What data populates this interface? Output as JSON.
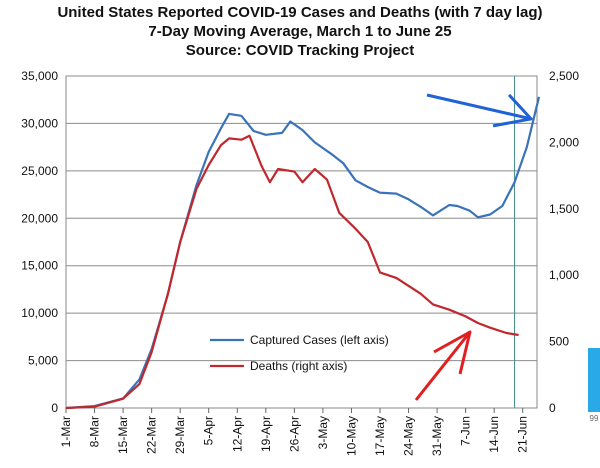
{
  "chart_data": {
    "type": "line",
    "title": "United States Reported COVID-19 Cases and Deaths (with 7 day lag)",
    "subtitle": "7-Day Moving Average, March 1 to June 25",
    "source": "Source: COVID Tracking Project",
    "x_ticks": [
      "1-Mar",
      "8-Mar",
      "15-Mar",
      "22-Mar",
      "29-Mar",
      "5-Apr",
      "12-Apr",
      "19-Apr",
      "26-Apr",
      "3-May",
      "10-May",
      "17-May",
      "24-May",
      "31-May",
      "7-Jun",
      "14-Jun",
      "21-Jun"
    ],
    "y_left": {
      "ylim": [
        0,
        35000
      ],
      "ticks": [
        "0",
        "5,000",
        "10,000",
        "15,000",
        "20,000",
        "25,000",
        "30,000",
        "35,000"
      ]
    },
    "y_right": {
      "ylim": [
        0,
        2500
      ],
      "ticks": [
        "0",
        "500",
        "1,000",
        "1,500",
        "2,000",
        "2,500"
      ]
    },
    "grid": true,
    "legend_position": "bottom-center",
    "series": [
      {
        "name": "Captured Cases (left axis)",
        "axis": "left",
        "color": "#3a73b8",
        "points": [
          [
            "2020-03-01",
            0
          ],
          [
            "2020-03-08",
            200
          ],
          [
            "2020-03-15",
            1000
          ],
          [
            "2020-03-19",
            3000
          ],
          [
            "2020-03-22",
            6200
          ],
          [
            "2020-03-26",
            12000
          ],
          [
            "2020-03-29",
            17500
          ],
          [
            "2020-04-02",
            23500
          ],
          [
            "2020-04-05",
            27000
          ],
          [
            "2020-04-08",
            29500
          ],
          [
            "2020-04-10",
            31000
          ],
          [
            "2020-04-13",
            30800
          ],
          [
            "2020-04-16",
            29200
          ],
          [
            "2020-04-19",
            28800
          ],
          [
            "2020-04-23",
            29000
          ],
          [
            "2020-04-25",
            30200
          ],
          [
            "2020-04-28",
            29300
          ],
          [
            "2020-05-01",
            28000
          ],
          [
            "2020-05-05",
            26800
          ],
          [
            "2020-05-08",
            25800
          ],
          [
            "2020-05-11",
            24000
          ],
          [
            "2020-05-14",
            23300
          ],
          [
            "2020-05-17",
            22700
          ],
          [
            "2020-05-21",
            22600
          ],
          [
            "2020-05-24",
            22000
          ],
          [
            "2020-05-27",
            21200
          ],
          [
            "2020-05-30",
            20300
          ],
          [
            "2020-06-03",
            21400
          ],
          [
            "2020-06-05",
            21300
          ],
          [
            "2020-06-08",
            20800
          ],
          [
            "2020-06-10",
            20100
          ],
          [
            "2020-06-13",
            20400
          ],
          [
            "2020-06-16",
            21300
          ],
          [
            "2020-06-19",
            23800
          ],
          [
            "2020-06-22",
            27500
          ],
          [
            "2020-06-25",
            32800
          ]
        ]
      },
      {
        "name": "Deaths (right axis)",
        "axis": "right",
        "color": "#c0282d",
        "points": [
          [
            "2020-03-01",
            0
          ],
          [
            "2020-03-08",
            10
          ],
          [
            "2020-03-15",
            70
          ],
          [
            "2020-03-19",
            180
          ],
          [
            "2020-03-22",
            420
          ],
          [
            "2020-03-26",
            860
          ],
          [
            "2020-03-29",
            1250
          ],
          [
            "2020-04-02",
            1650
          ],
          [
            "2020-04-05",
            1830
          ],
          [
            "2020-04-08",
            1980
          ],
          [
            "2020-04-10",
            2030
          ],
          [
            "2020-04-13",
            2020
          ],
          [
            "2020-04-15",
            2050
          ],
          [
            "2020-04-18",
            1820
          ],
          [
            "2020-04-20",
            1700
          ],
          [
            "2020-04-22",
            1800
          ],
          [
            "2020-04-26",
            1780
          ],
          [
            "2020-04-28",
            1700
          ],
          [
            "2020-05-01",
            1800
          ],
          [
            "2020-05-04",
            1720
          ],
          [
            "2020-05-07",
            1470
          ],
          [
            "2020-05-11",
            1350
          ],
          [
            "2020-05-14",
            1250
          ],
          [
            "2020-05-17",
            1020
          ],
          [
            "2020-05-21",
            980
          ],
          [
            "2020-05-24",
            920
          ],
          [
            "2020-05-27",
            860
          ],
          [
            "2020-05-30",
            780
          ],
          [
            "2020-06-03",
            740
          ],
          [
            "2020-06-07",
            690
          ],
          [
            "2020-06-10",
            640
          ],
          [
            "2020-06-13",
            605
          ],
          [
            "2020-06-17",
            565
          ],
          [
            "2020-06-20",
            550
          ]
        ]
      }
    ],
    "annotations": [
      {
        "type": "arrow",
        "color": "#1f63d6",
        "points_to": "Captured Cases (left axis)"
      },
      {
        "type": "arrow",
        "color": "#e02020",
        "points_to": "Deaths (right axis)"
      }
    ]
  }
}
